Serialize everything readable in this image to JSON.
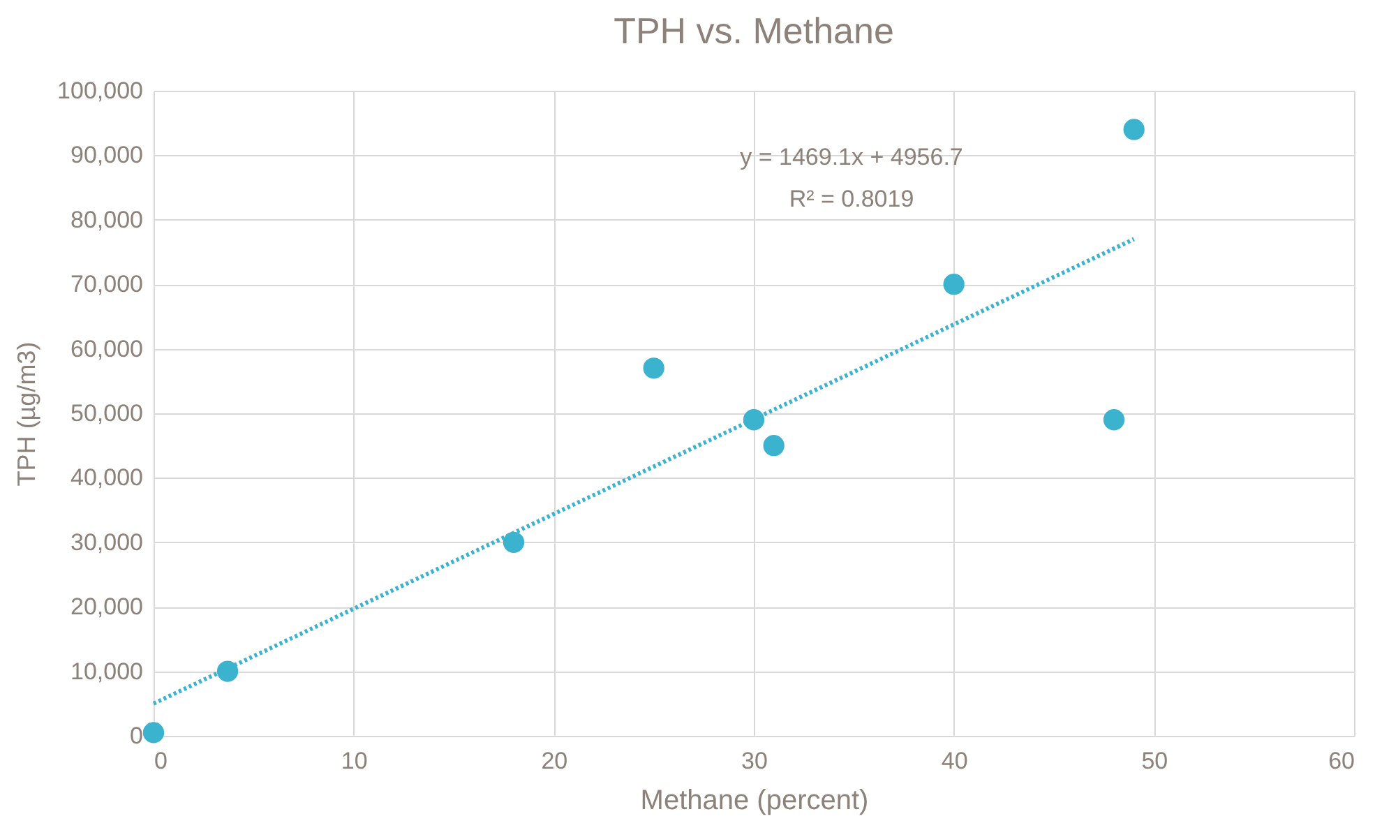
{
  "chart_data": {
    "type": "scatter",
    "title": "TPH  vs. Methane",
    "xlabel": "Methane (percent)",
    "ylabel": "TPH (µg/m3)",
    "xlim": [
      0,
      60
    ],
    "xticks": [
      0,
      10,
      20,
      30,
      40,
      50,
      60
    ],
    "ylim": [
      0,
      100000
    ],
    "yticks": [
      {
        "value": 0,
        "label": "0"
      },
      {
        "value": 10000,
        "label": "10,000"
      },
      {
        "value": 20000,
        "label": "20,000"
      },
      {
        "value": 30000,
        "label": "30,000"
      },
      {
        "value": 40000,
        "label": "40,000"
      },
      {
        "value": 50000,
        "label": "50,000"
      },
      {
        "value": 60000,
        "label": "60,000"
      },
      {
        "value": 70000,
        "label": "70,000"
      },
      {
        "value": 80000,
        "label": "80,000"
      },
      {
        "value": 90000,
        "label": "90,000"
      },
      {
        "value": 100000,
        "label": "100,000"
      }
    ],
    "grid": true,
    "series": [
      {
        "marker": "circle",
        "color": "#3bb3cf",
        "x": [
          0,
          3.7,
          18,
          25,
          30,
          31,
          40,
          48,
          49
        ],
        "values": [
          500,
          10000,
          30000,
          57000,
          49000,
          45000,
          70000,
          49000,
          94000
        ]
      },
      {
        "type": "line",
        "line_style": "dotted",
        "color": "#3bb3cf",
        "x": [
          0,
          49
        ],
        "values": [
          5000,
          77000
        ]
      }
    ],
    "annotations": [
      "y = 1469.1x + 4956.7",
      "R² = 0.8019"
    ]
  }
}
